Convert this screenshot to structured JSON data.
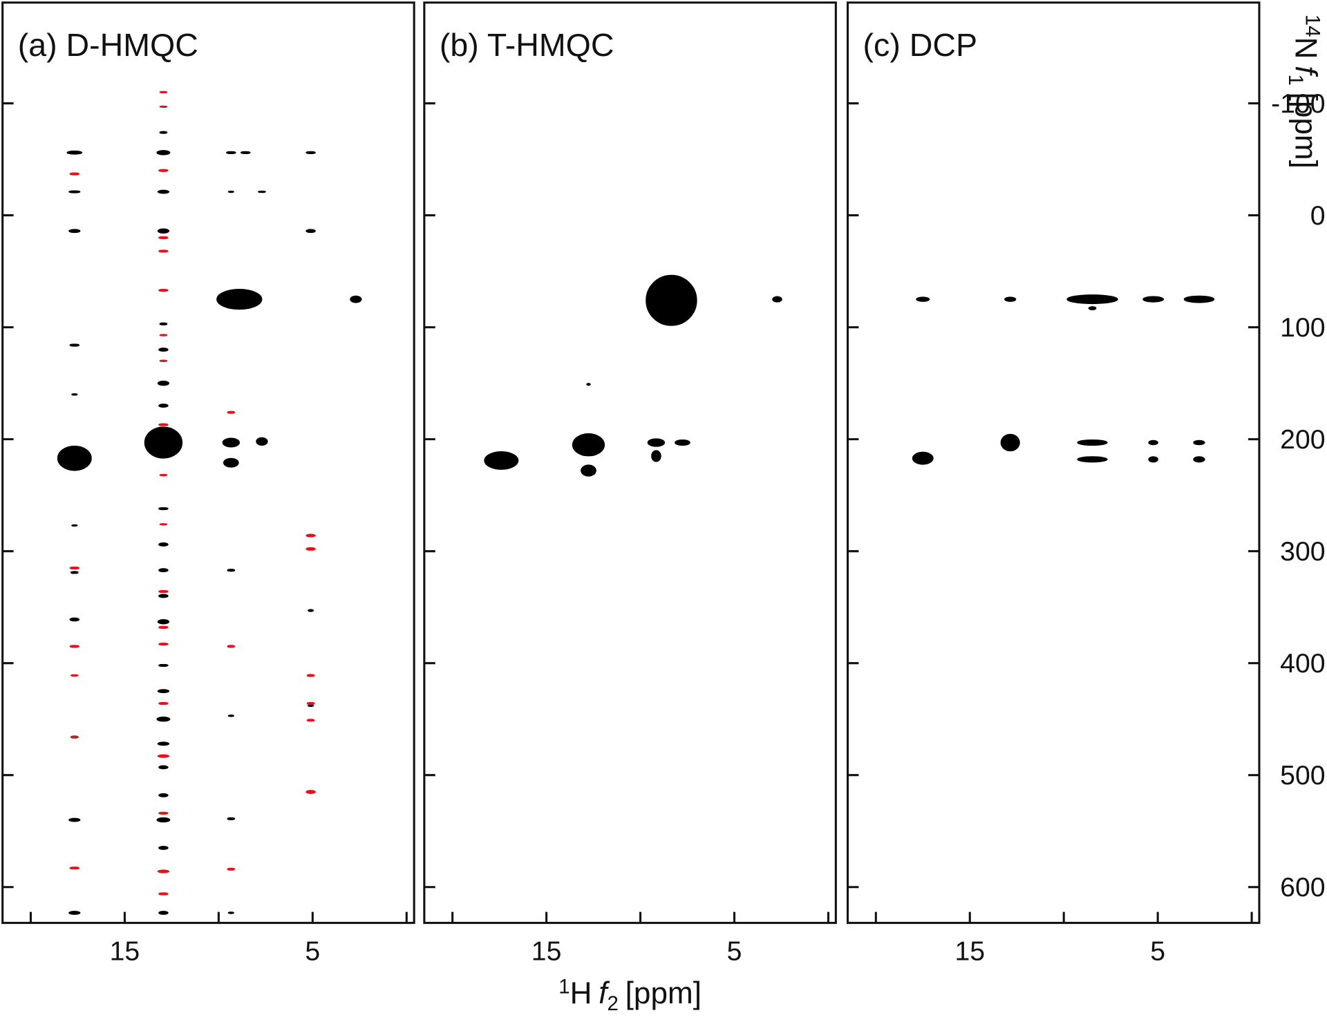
{
  "chart_data": [
    {
      "type": "contour",
      "title": "(a) D-HMQC",
      "xlim": [
        21.5,
        -0.4
      ],
      "xticks": [
        15,
        5
      ],
      "xtick_marks": [
        20,
        10,
        0
      ],
      "ylim": [
        -190,
        632
      ],
      "ytick_marks": [
        -100,
        0,
        100,
        200,
        300,
        400,
        500,
        600
      ],
      "series": [
        {
          "color": "#000000",
          "x": [
            17.67,
            17.67,
            17.67,
            17.67,
            17.67,
            17.67,
            17.67,
            17.67,
            17.67,
            17.67,
            17.67,
            17.67,
            12.94,
            12.94,
            12.94,
            12.94,
            12.94,
            12.94,
            12.94,
            12.94,
            12.94,
            12.94,
            12.94,
            12.94,
            12.94,
            12.94,
            12.94,
            12.94,
            12.94,
            12.94,
            12.94,
            12.94,
            12.94,
            12.94,
            12.94,
            9.34,
            9.34,
            9.34,
            9.34,
            9.34,
            9.34,
            9.34,
            9.34,
            8.57,
            7.7,
            8.9,
            7.7,
            2.7,
            5.1,
            5.1,
            5.1,
            5.1
          ],
          "y": [
            -56,
            -21,
            14,
            116,
            160,
            217,
            277,
            319,
            361,
            466,
            540,
            623,
            -74,
            -56,
            -21,
            14,
            97,
            120,
            150,
            170,
            203,
            262,
            294,
            317,
            340,
            363,
            402,
            425,
            450,
            472,
            493,
            518,
            540,
            565,
            623,
            -56,
            -21,
            203,
            221,
            317,
            447,
            539,
            623,
            -56,
            -21,
            75,
            202,
            75,
            -56,
            14,
            353,
            438
          ],
          "w": [
            0.8,
            0.6,
            0.6,
            0.5,
            0.3,
            1.8,
            0.3,
            0.4,
            0.5,
            0.4,
            0.6,
            0.6,
            0.4,
            0.7,
            0.6,
            0.6,
            0.4,
            0.5,
            0.6,
            0.5,
            2,
            0.5,
            0.5,
            0.5,
            0.5,
            0.6,
            0.5,
            0.6,
            0.7,
            0.6,
            0.5,
            0.5,
            0.7,
            0.5,
            0.5,
            0.5,
            0.3,
            0.9,
            0.8,
            0.4,
            0.3,
            0.4,
            0.3,
            0.5,
            0.4,
            2.4,
            0.6,
            0.6,
            0.5,
            0.5,
            0.3,
            0.3
          ],
          "h": [
            3,
            2,
            3,
            2,
            1.5,
            22,
            1.5,
            2,
            3,
            2,
            3,
            3,
            2,
            4,
            3,
            4,
            2,
            3,
            4,
            3,
            28,
            2,
            3,
            3,
            3,
            4,
            2,
            3,
            4,
            3,
            3,
            3,
            4,
            3,
            3,
            2,
            1.5,
            8,
            8,
            2,
            1.5,
            2,
            1.5,
            2,
            1.5,
            18,
            7,
            6,
            2,
            3,
            2,
            1.5
          ]
        },
        {
          "color": "#e8101a",
          "x": [
            17.67,
            17.67,
            17.67,
            17.67,
            17.67,
            17.67,
            12.94,
            12.94,
            12.94,
            12.94,
            12.94,
            12.94,
            12.94,
            12.94,
            12.94,
            12.94,
            12.94,
            12.94,
            12.94,
            12.94,
            12.94,
            12.94,
            12.94,
            12.94,
            12.94,
            9.34,
            9.34,
            9.34,
            5.1,
            5.1,
            5.1,
            5.1,
            5.1,
            5.1
          ],
          "y": [
            -37,
            315,
            385,
            411,
            466,
            583,
            -110,
            -97,
            -40,
            20,
            32,
            67,
            107,
            130,
            187,
            232,
            276,
            336,
            368,
            383,
            436,
            483,
            534,
            586,
            606,
            176,
            385,
            584,
            286,
            298,
            411,
            436,
            451,
            515
          ],
          "w": [
            0.5,
            0.5,
            0.5,
            0.4,
            0.4,
            0.5,
            0.4,
            0.4,
            0.5,
            0.5,
            0.5,
            0.5,
            0.4,
            0.4,
            0.5,
            0.4,
            0.4,
            0.5,
            0.5,
            0.5,
            0.5,
            0.6,
            0.5,
            0.6,
            0.5,
            0.4,
            0.4,
            0.4,
            0.5,
            0.5,
            0.4,
            0.4,
            0.4,
            0.5
          ],
          "h": [
            2,
            2,
            2,
            1.5,
            1.5,
            2,
            1.5,
            1.5,
            2,
            2,
            2,
            2,
            1.5,
            1.5,
            2,
            1.5,
            1.5,
            2,
            2,
            2,
            2,
            2.5,
            2,
            2.5,
            2,
            2,
            2,
            2,
            2.5,
            2.5,
            2,
            2,
            2,
            3
          ]
        }
      ]
    },
    {
      "type": "contour",
      "title": "(b) T-HMQC",
      "x_label": [
        "1",
        "H",
        "f",
        "2",
        "[ppm]"
      ],
      "xlim": [
        21.5,
        -0.4
      ],
      "xticks": [
        15,
        5
      ],
      "xtick_marks": [
        20,
        10,
        0
      ],
      "ylim": [
        -190,
        632
      ],
      "ytick_marks": [
        -100,
        0,
        100,
        200,
        300,
        400,
        500,
        600
      ],
      "series": [
        {
          "color": "#000000",
          "x": [
            17.4,
            12.76,
            12.76,
            9.16,
            9.16,
            7.76,
            8.35,
            2.72,
            12.76
          ],
          "y": [
            219,
            205,
            228,
            203,
            215,
            203,
            76,
            75,
            151
          ],
          "w": [
            1.8,
            1.7,
            0.8,
            0.9,
            0.5,
            0.8,
            2.7,
            0.5,
            0.2
          ],
          "h": [
            16,
            20,
            10,
            7,
            10,
            5,
            45,
            5,
            2
          ]
        }
      ]
    },
    {
      "type": "contour",
      "title": "(c) DCP",
      "y_label": [
        "14",
        "N",
        "f",
        "1",
        "[ppm]"
      ],
      "xlim": [
        21.5,
        -0.4
      ],
      "xticks": [
        15,
        5
      ],
      "xtick_marks": [
        20,
        10,
        0
      ],
      "ylim": [
        -190,
        632
      ],
      "yticks": [
        0,
        100,
        200,
        300,
        400,
        500,
        600
      ],
      "ytick_marks": [
        -100
      ],
      "series": [
        {
          "color": "#000000",
          "x": [
            17.5,
            17.5,
            12.85,
            12.85,
            8.48,
            8.48,
            8.48,
            8.48,
            5.24,
            5.24,
            5.24,
            2.8,
            2.8,
            2.8
          ],
          "y": [
            75,
            217,
            75,
            203,
            75,
            83,
            203,
            218,
            75,
            203,
            218,
            75,
            203,
            218
          ],
          "w": [
            0.7,
            1.1,
            0.6,
            1.0,
            2.7,
            0.4,
            1.6,
            1.6,
            1.1,
            0.5,
            0.5,
            1.6,
            0.6,
            0.6
          ],
          "h": [
            4,
            11,
            4,
            15,
            8,
            3,
            5,
            5,
            5,
            4,
            5,
            6,
            4,
            5
          ]
        }
      ]
    }
  ]
}
